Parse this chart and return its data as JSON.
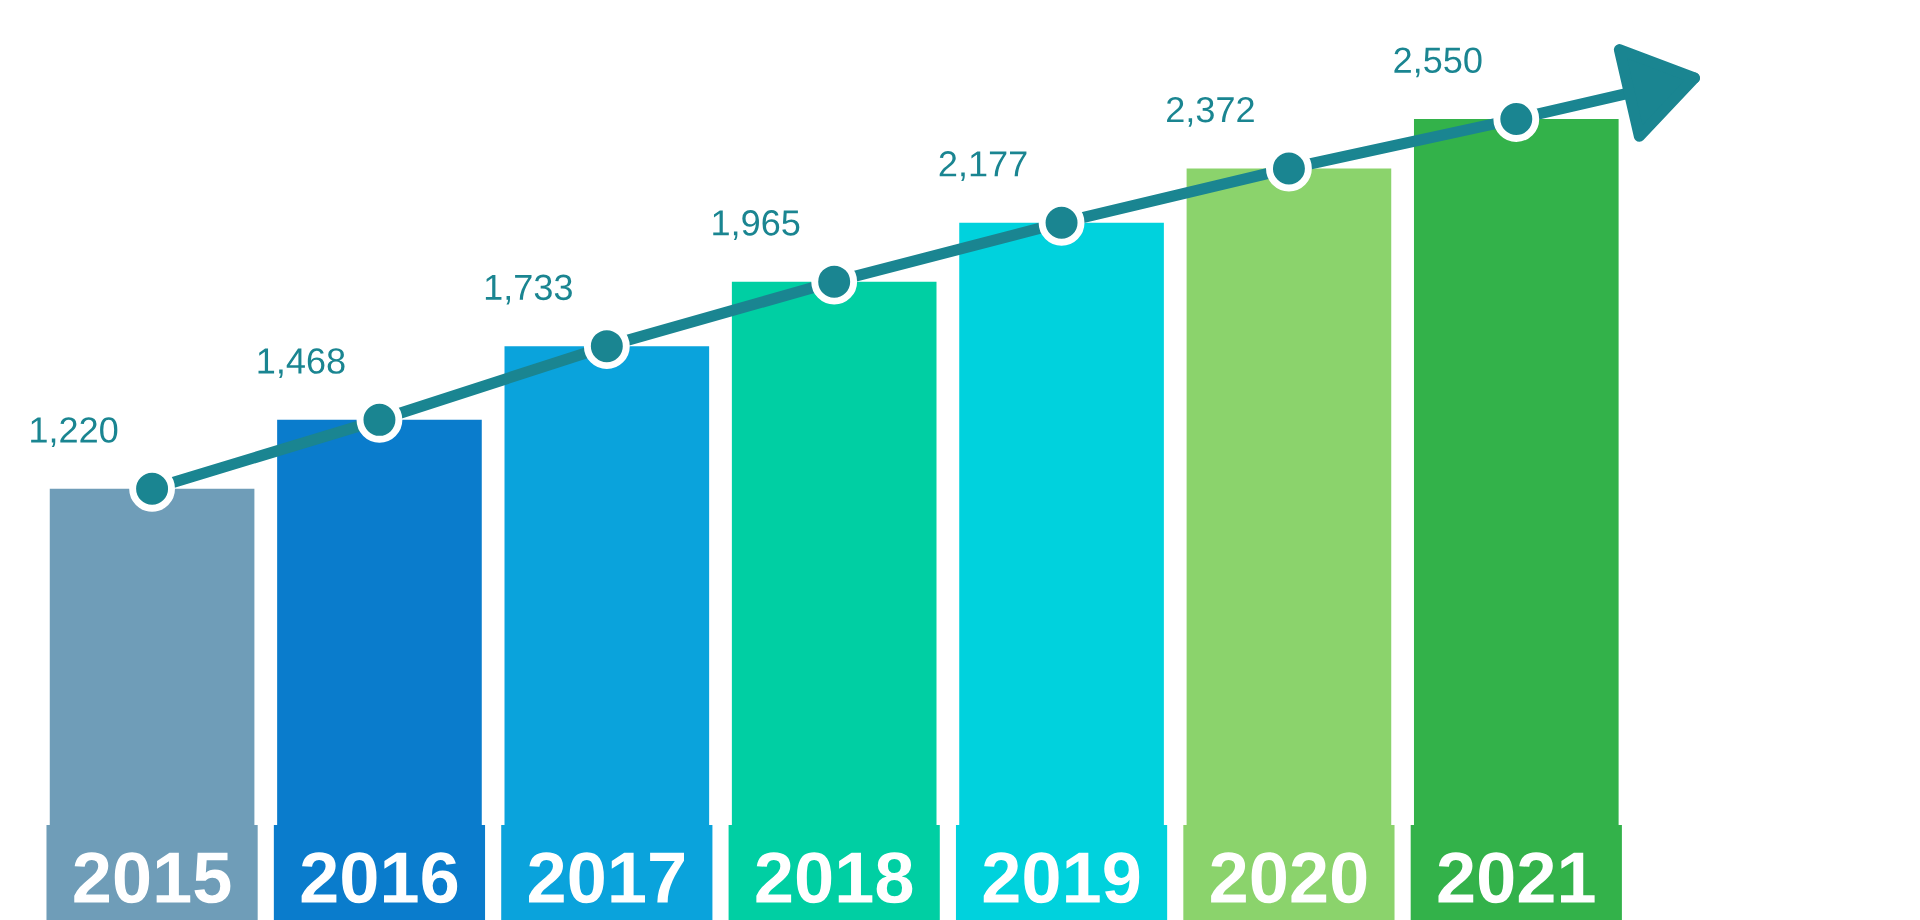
{
  "chart_data": {
    "type": "bar",
    "categories": [
      "2015",
      "2016",
      "2017",
      "2018",
      "2019",
      "2020",
      "2021"
    ],
    "series": [
      {
        "colors": [
          "#6f9db8",
          "#0a7ccc",
          "#0aa3dc",
          "#00cfa3",
          "#00d2dd",
          "#8bd36c",
          "#33b24a"
        ],
        "values": [
          1220,
          1468,
          1733,
          1965,
          2177,
          2372,
          2550
        ]
      },
      {
        "type": "line",
        "color": "#1a8591",
        "values": [
          1220,
          1468,
          1733,
          1965,
          2177,
          2372,
          2550
        ],
        "marker": "circle",
        "value_labels": [
          "1,220",
          "1,468",
          "1,733",
          "1,965",
          "2,177",
          "2,372",
          "2,550"
        ]
      }
    ],
    "tick_labels": "x",
    "grid": false,
    "legend": false
  }
}
